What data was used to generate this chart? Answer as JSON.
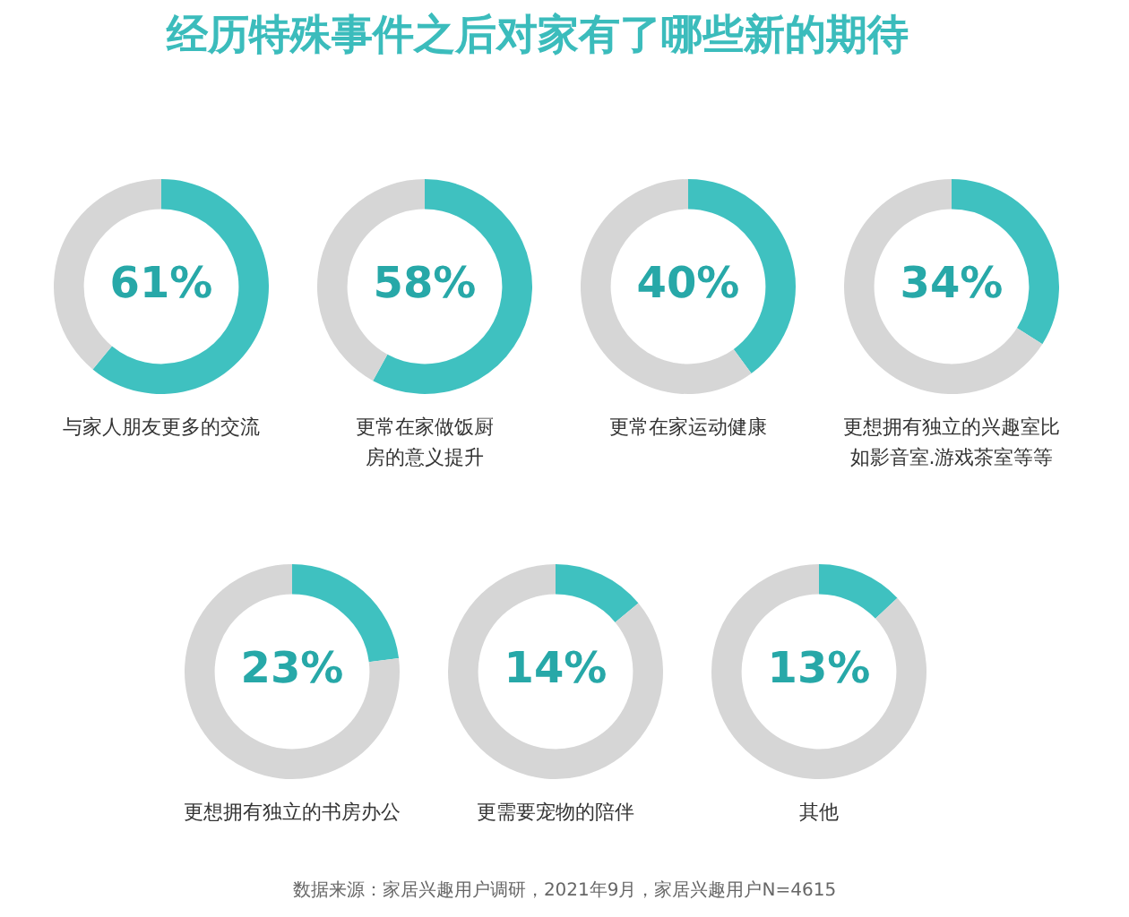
{
  "chart_data": [
    {
      "type": "other",
      "title": "经历特殊事件之后对家有了哪些新的期待",
      "annotations": [
        "数据来源：家居兴趣用户调研，2021年9月，家居兴趣用户N=4615"
      ]
    },
    {
      "type": "donut",
      "title": "与家人朋友更多的交流",
      "categories": [
        null,
        null
      ],
      "values": [
        61,
        39
      ],
      "colors": [
        "#3fc1c0",
        "#d6d6d6"
      ],
      "value_labels": [
        "61%",
        null
      ]
    },
    {
      "type": "donut",
      "title": "更常在家做饭厨房的意义提升",
      "categories": [
        null,
        null
      ],
      "values": [
        58,
        42
      ],
      "colors": [
        "#3fc1c0",
        "#d6d6d6"
      ],
      "value_labels": [
        "58%",
        null
      ]
    },
    {
      "type": "donut",
      "title": "更常在家运动健康",
      "categories": [
        null,
        null
      ],
      "values": [
        40,
        60
      ],
      "colors": [
        "#3fc1c0",
        "#d6d6d6"
      ],
      "value_labels": [
        "40%",
        null
      ]
    },
    {
      "type": "donut",
      "title": "更想拥有独立的兴趣室比如影音室.游戏茶室等等",
      "categories": [
        null,
        null
      ],
      "values": [
        34,
        66
      ],
      "colors": [
        "#3fc1c0",
        "#d6d6d6"
      ],
      "value_labels": [
        "34%",
        null
      ]
    },
    {
      "type": "donut",
      "title": "更想拥有独立的书房办公",
      "categories": [
        null,
        null
      ],
      "values": [
        23,
        77
      ],
      "colors": [
        "#3fc1c0",
        "#d6d6d6"
      ],
      "value_labels": [
        "23%",
        null
      ]
    },
    {
      "type": "donut",
      "title": "更需要宠物的陪伴",
      "categories": [
        null,
        null
      ],
      "values": [
        14,
        86
      ],
      "colors": [
        "#3fc1c0",
        "#d6d6d6"
      ],
      "value_labels": [
        "14%",
        null
      ]
    },
    {
      "type": "donut",
      "title": "其他",
      "categories": [
        null,
        null
      ],
      "values": [
        13,
        87
      ],
      "colors": [
        "#3fc1c0",
        "#d6d6d6"
      ],
      "value_labels": [
        "13%",
        null
      ]
    }
  ]
}
